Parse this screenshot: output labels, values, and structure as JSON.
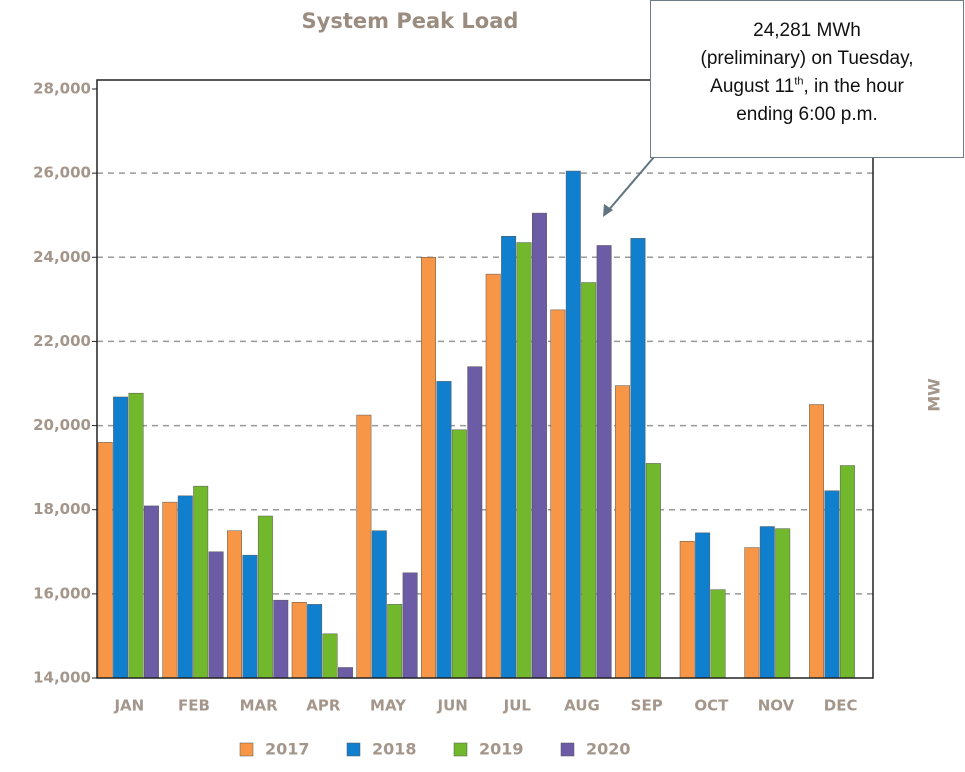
{
  "chart_data": {
    "type": "bar",
    "title": "System Peak Load",
    "ylabel": "MW",
    "categories": [
      "JAN",
      "FEB",
      "MAR",
      "APR",
      "MAY",
      "JUN",
      "JUL",
      "AUG",
      "SEP",
      "OCT",
      "NOV",
      "DEC"
    ],
    "series": [
      {
        "name": "2017",
        "color": "#f79646",
        "values": [
          19600,
          18180,
          17500,
          15800,
          20250,
          24000,
          23600,
          22750,
          20950,
          17250,
          17100,
          20500
        ]
      },
      {
        "name": "2018",
        "color": "#0f7fce",
        "values": [
          20680,
          18330,
          16920,
          15750,
          17500,
          21050,
          24500,
          26050,
          24450,
          17450,
          17600,
          18450
        ]
      },
      {
        "name": "2019",
        "color": "#72b82c",
        "values": [
          20770,
          18560,
          17850,
          15050,
          15750,
          19900,
          24350,
          23400,
          19100,
          16100,
          17550,
          19050
        ]
      },
      {
        "name": "2020",
        "color": "#6b5ca5",
        "values": [
          18090,
          17000,
          15850,
          14250,
          16500,
          21400,
          25050,
          24281,
          null,
          null,
          null,
          null
        ]
      }
    ],
    "ylim": [
      14000,
      28000
    ],
    "yticks": [
      {
        "value": 14000,
        "label": "14,000"
      },
      {
        "value": 16000,
        "label": "16,000"
      },
      {
        "value": 18000,
        "label": "18,000"
      },
      {
        "value": 20000,
        "label": "20,000"
      },
      {
        "value": 22000,
        "label": "22,000"
      },
      {
        "value": 24000,
        "label": "24,000"
      },
      {
        "value": 26000,
        "label": "26,000"
      },
      {
        "value": 28000,
        "label": "28,000"
      }
    ],
    "grid": true,
    "annotation": {
      "line1": "24,281 MWh",
      "line2": "(preliminary) on Tuesday,",
      "line3a": "August 11",
      "line3sup": "th",
      "line3b": ", in the hour",
      "line4": "ending 6:00 p.m."
    }
  }
}
